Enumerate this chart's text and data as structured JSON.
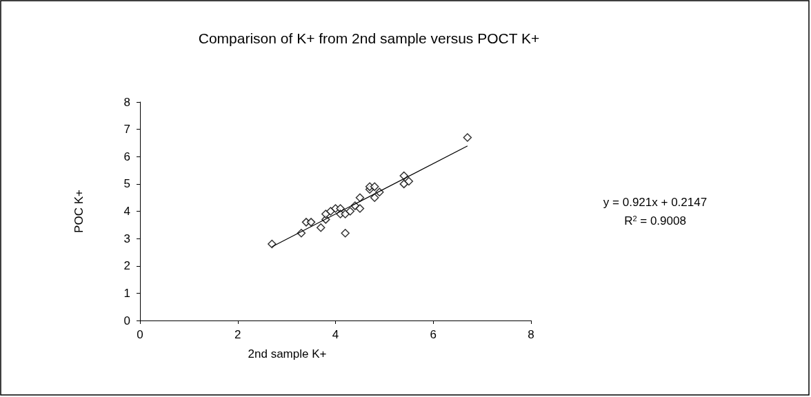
{
  "chart_data": {
    "type": "scatter",
    "title": "Comparison of K+ from 2nd sample versus POCT K+",
    "xlabel": "2nd sample K+",
    "ylabel": "POC K+",
    "xlim": [
      0,
      8
    ],
    "xticks": [
      0,
      2,
      4,
      6,
      8
    ],
    "ylim": [
      0,
      8
    ],
    "yticks": [
      0,
      1,
      2,
      3,
      4,
      5,
      6,
      7,
      8
    ],
    "grid": false,
    "marker": "diamond",
    "series": [
      {
        "color": "#000000",
        "x": [
          2.7,
          3.3,
          3.4,
          3.5,
          3.7,
          3.8,
          3.8,
          3.9,
          4.0,
          4.1,
          4.1,
          4.2,
          4.2,
          4.3,
          4.4,
          4.5,
          4.5,
          4.7,
          4.7,
          4.8,
          4.8,
          4.9,
          5.4,
          5.4,
          5.5,
          6.7
        ],
        "values": [
          2.8,
          3.2,
          3.6,
          3.6,
          3.4,
          3.7,
          3.9,
          4.0,
          4.1,
          4.1,
          3.9,
          3.9,
          3.2,
          4.0,
          4.2,
          4.5,
          4.1,
          4.8,
          4.9,
          4.9,
          4.5,
          4.7,
          5.3,
          5.0,
          5.1,
          6.7
        ]
      },
      {
        "type": "line",
        "marker": "none",
        "color": "#000000",
        "x": [
          2.7,
          6.7
        ],
        "values": [
          2.7,
          6.39
        ]
      }
    ],
    "annotations": [
      "y = 0.921x + 0.2147",
      "R$^{2}$ = 0.9008"
    ]
  }
}
